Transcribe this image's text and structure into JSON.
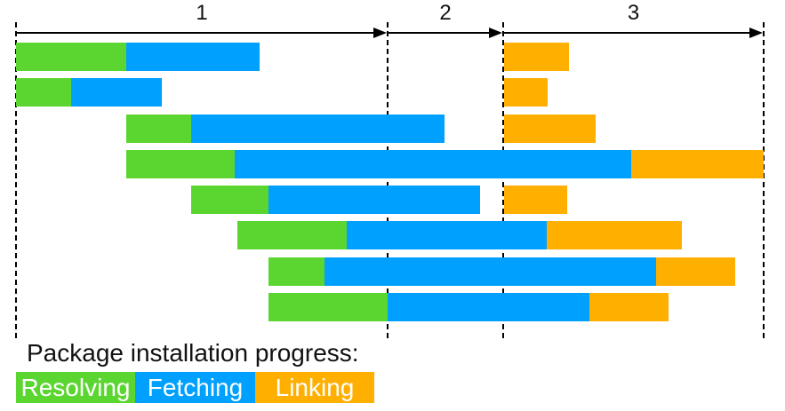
{
  "colors": {
    "resolving": "#5BD631",
    "fetching": "#00A0FF",
    "linking": "#FFAF00",
    "axis": "#000000",
    "background": "#FFFFFF",
    "label_text": "#111111",
    "legend_text": "#FFFFFF"
  },
  "legend": {
    "title": "Package installation progress:",
    "items": [
      {
        "label": "Resolving",
        "color_key": "resolving",
        "width": 134
      },
      {
        "label": "Fetching",
        "color_key": "fetching",
        "width": 135
      },
      {
        "label": "Linking",
        "color_key": "linking",
        "width": 134
      }
    ]
  },
  "chart_data": {
    "type": "gantt",
    "title": "Package installation progress",
    "unit": "abstract time (px from timeline origin)",
    "xlim": [
      0,
      841
    ],
    "stages": [
      "Resolving",
      "Fetching",
      "Linking"
    ],
    "phases": [
      {
        "label": "1",
        "start": 0,
        "end": 418
      },
      {
        "label": "2",
        "start": 418,
        "end": 548
      },
      {
        "label": "3",
        "start": 548,
        "end": 841
      }
    ],
    "tasks": [
      {
        "segments": {
          "resolving": [
            0,
            124
          ],
          "fetching": [
            124,
            274
          ],
          "linking": [
            549,
            622
          ]
        }
      },
      {
        "segments": {
          "resolving": [
            0,
            62
          ],
          "fetching": [
            62,
            164
          ],
          "linking": [
            549,
            598
          ]
        }
      },
      {
        "segments": {
          "resolving": [
            124,
            197
          ],
          "fetching": [
            197,
            482
          ],
          "linking": [
            549,
            652
          ]
        }
      },
      {
        "segments": {
          "resolving": [
            124,
            246
          ],
          "fetching": [
            246,
            692
          ],
          "linking": [
            692,
            841
          ]
        }
      },
      {
        "segments": {
          "resolving": [
            197,
            284
          ],
          "fetching": [
            284,
            522
          ],
          "linking": [
            549,
            620
          ]
        }
      },
      {
        "segments": {
          "resolving": [
            249,
            372
          ],
          "fetching": [
            372,
            597
          ],
          "linking": [
            597,
            749
          ]
        }
      },
      {
        "segments": {
          "resolving": [
            284,
            347
          ],
          "fetching": [
            347,
            720
          ],
          "linking": [
            720,
            809
          ]
        }
      },
      {
        "segments": {
          "resolving": [
            284,
            418
          ],
          "fetching": [
            418,
            645
          ],
          "linking": [
            645,
            734
          ]
        }
      }
    ]
  }
}
